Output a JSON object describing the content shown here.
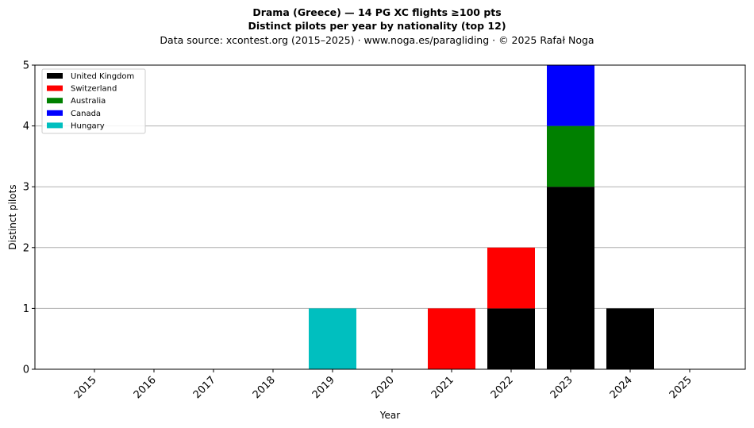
{
  "chart_data": {
    "type": "bar",
    "stacked": true,
    "title_line1": "Drama (Greece)  —  14 PG XC flights ≥100 pts",
    "title_line2": "Distinct pilots per year by nationality (top 12)",
    "subtitle": "Data source: xcontest.org (2015–2025)  ·  www.noga.es/paragliding  ·  © 2025 Rafał Noga",
    "xlabel": "Year",
    "ylabel": "Distinct pilots",
    "ylim": [
      0,
      5
    ],
    "yticks": [
      "0",
      "1",
      "2",
      "3",
      "4",
      "5"
    ],
    "grid": "horizontal",
    "legend_position": "top-left",
    "categories": [
      "2015",
      "2016",
      "2017",
      "2018",
      "2019",
      "2020",
      "2021",
      "2022",
      "2023",
      "2024",
      "2025"
    ],
    "series": [
      {
        "name": "United Kingdom",
        "color": "#000000",
        "values": [
          0,
          0,
          0,
          0,
          0,
          0,
          0,
          1,
          3,
          1,
          0
        ]
      },
      {
        "name": "Switzerland",
        "color": "#ff0000",
        "values": [
          0,
          0,
          0,
          0,
          0,
          0,
          1,
          1,
          0,
          0,
          0
        ]
      },
      {
        "name": "Australia",
        "color": "#008000",
        "values": [
          0,
          0,
          0,
          0,
          0,
          0,
          0,
          0,
          1,
          0,
          0
        ]
      },
      {
        "name": "Canada",
        "color": "#0000ff",
        "values": [
          0,
          0,
          0,
          0,
          0,
          0,
          0,
          0,
          1,
          0,
          0
        ]
      },
      {
        "name": "Hungary",
        "color": "#00bfbf",
        "values": [
          0,
          0,
          0,
          0,
          1,
          0,
          0,
          0,
          0,
          0,
          0
        ]
      }
    ]
  }
}
